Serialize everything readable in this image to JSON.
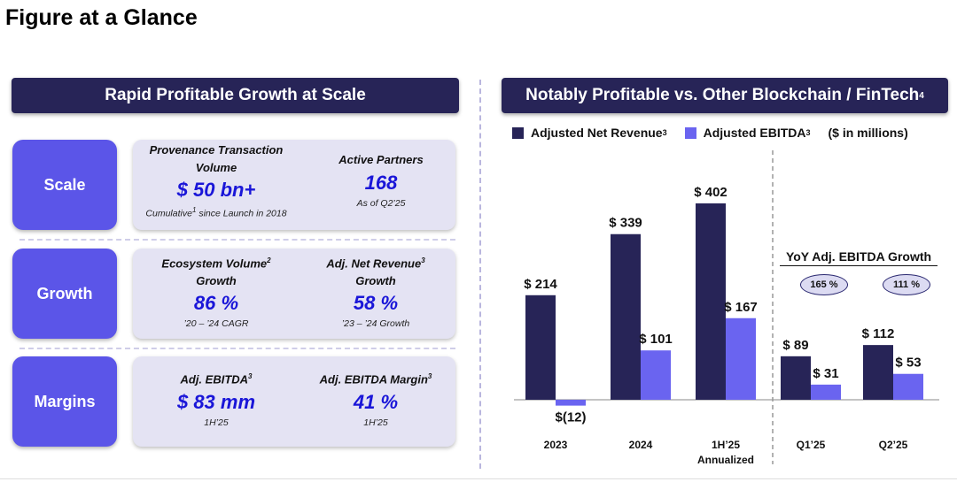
{
  "page": {
    "title": "Figure at a Glance"
  },
  "left": {
    "banner": "Rapid Profitable Growth at Scale",
    "rows": [
      {
        "label": "Scale",
        "metrics": [
          {
            "label_lines": [
              "Provenance Transaction",
              "Volume"
            ],
            "value": "$ 50 bn+",
            "note_pre": "Cumulative",
            "note_sup": "1",
            "note_post": " since Launch in 2018"
          },
          {
            "label": "Active Partners",
            "value": "168",
            "note": "As of Q2’25"
          }
        ]
      },
      {
        "label": "Growth",
        "metrics": [
          {
            "label_pre": "Ecosystem Volume",
            "label_sup": "2",
            "label_line2": "Growth",
            "value": "86 %",
            "note": "’20 – ’24 CAGR"
          },
          {
            "label_pre": "Adj. Net Revenue",
            "label_sup": "3",
            "label_line2": "Growth",
            "value": "58 %",
            "note": "’23 – ’24 Growth"
          }
        ]
      },
      {
        "label": "Margins",
        "metrics": [
          {
            "label_pre": "Adj. EBITDA",
            "label_sup": "3",
            "value": "$ 83 mm",
            "note": "1H’25"
          },
          {
            "label_pre": "Adj. EBITDA Margin",
            "label_sup": "3",
            "value": "41 %",
            "note": "1H’25"
          }
        ]
      }
    ]
  },
  "right": {
    "banner_text": "Notably Profitable vs. Other Blockchain / FinTech",
    "banner_sup": "4",
    "units": "($ in millions)",
    "growth": {
      "title": "YoY Adj. EBITDA Growth",
      "pills": [
        "165 %",
        "111 %"
      ]
    }
  },
  "colors": {
    "navy": "#272457",
    "purple": "#6a64f0",
    "accent_text": "#1a16d8",
    "label_bg": "#5b55e8",
    "panel_bg": "#e4e3f3"
  },
  "chart_data": {
    "type": "bar",
    "categories": [
      "2023",
      "2024",
      "1H’25",
      "Q1’25",
      "Q2’25"
    ],
    "category_sublabels": [
      "",
      "",
      "Annualized",
      "",
      ""
    ],
    "series": [
      {
        "name": "Adjusted Net Revenue",
        "name_sup": "3",
        "values": [
          214,
          339,
          402,
          89,
          112
        ],
        "labels": [
          "$ 214",
          "$ 339",
          "$ 402",
          "$ 89",
          "$ 112"
        ]
      },
      {
        "name": "Adjusted EBITDA",
        "name_sup": "3",
        "values": [
          -12,
          101,
          167,
          31,
          53
        ],
        "labels": [
          "$(12)",
          "$ 101",
          "$ 167",
          "$ 31",
          "$ 53"
        ]
      }
    ],
    "ylim": [
      -30,
      420
    ],
    "group_separator_after_index": 2,
    "title": "",
    "xlabel": "",
    "ylabel": ""
  }
}
